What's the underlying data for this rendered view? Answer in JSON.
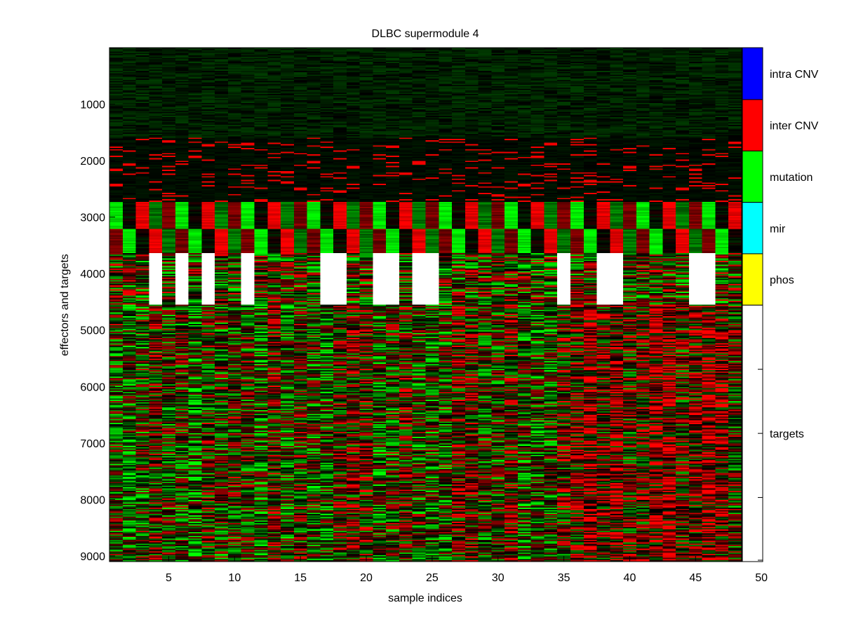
{
  "chart_data": {
    "type": "heatmap",
    "title": "DLBC supermodule 4",
    "xlabel": "sample indices",
    "ylabel": "effectors and targets",
    "x_range": [
      0.5,
      48.5
    ],
    "y_range": [
      1,
      9100
    ],
    "num_samples": 48,
    "num_rows": 9100,
    "x_ticks": [
      5,
      10,
      15,
      20,
      25,
      30,
      35,
      40,
      45,
      50
    ],
    "y_ticks": [
      1000,
      2000,
      3000,
      4000,
      5000,
      6000,
      7000,
      8000,
      9000
    ],
    "colormap": {
      "low": "#00ff00",
      "mid": "#000000",
      "high": "#ff0000",
      "missing": "#ffffff"
    },
    "categories": [
      {
        "name": "intra CNV",
        "color": "#0000ff",
        "row_start": 1,
        "row_end": 920
      },
      {
        "name": "inter CNV",
        "color": "#ff0000",
        "row_start": 920,
        "row_end": 1830
      },
      {
        "name": "mutation",
        "color": "#00ff00",
        "row_start": 1830,
        "row_end": 2740
      },
      {
        "name": "mir",
        "color": "#00ffff",
        "row_start": 2740,
        "row_end": 3650
      },
      {
        "name": "phos",
        "color": "#ffff00",
        "row_start": 3650,
        "row_end": 4560
      },
      {
        "name": "targets",
        "color": "#ffffff",
        "row_start": 4560,
        "row_end": 9100
      }
    ],
    "phos_missing_samples": [
      4,
      6,
      8,
      11,
      17,
      18,
      21,
      22,
      24,
      25,
      35,
      38,
      39,
      45,
      46
    ],
    "grid": false,
    "legend": "colorbar-right"
  }
}
